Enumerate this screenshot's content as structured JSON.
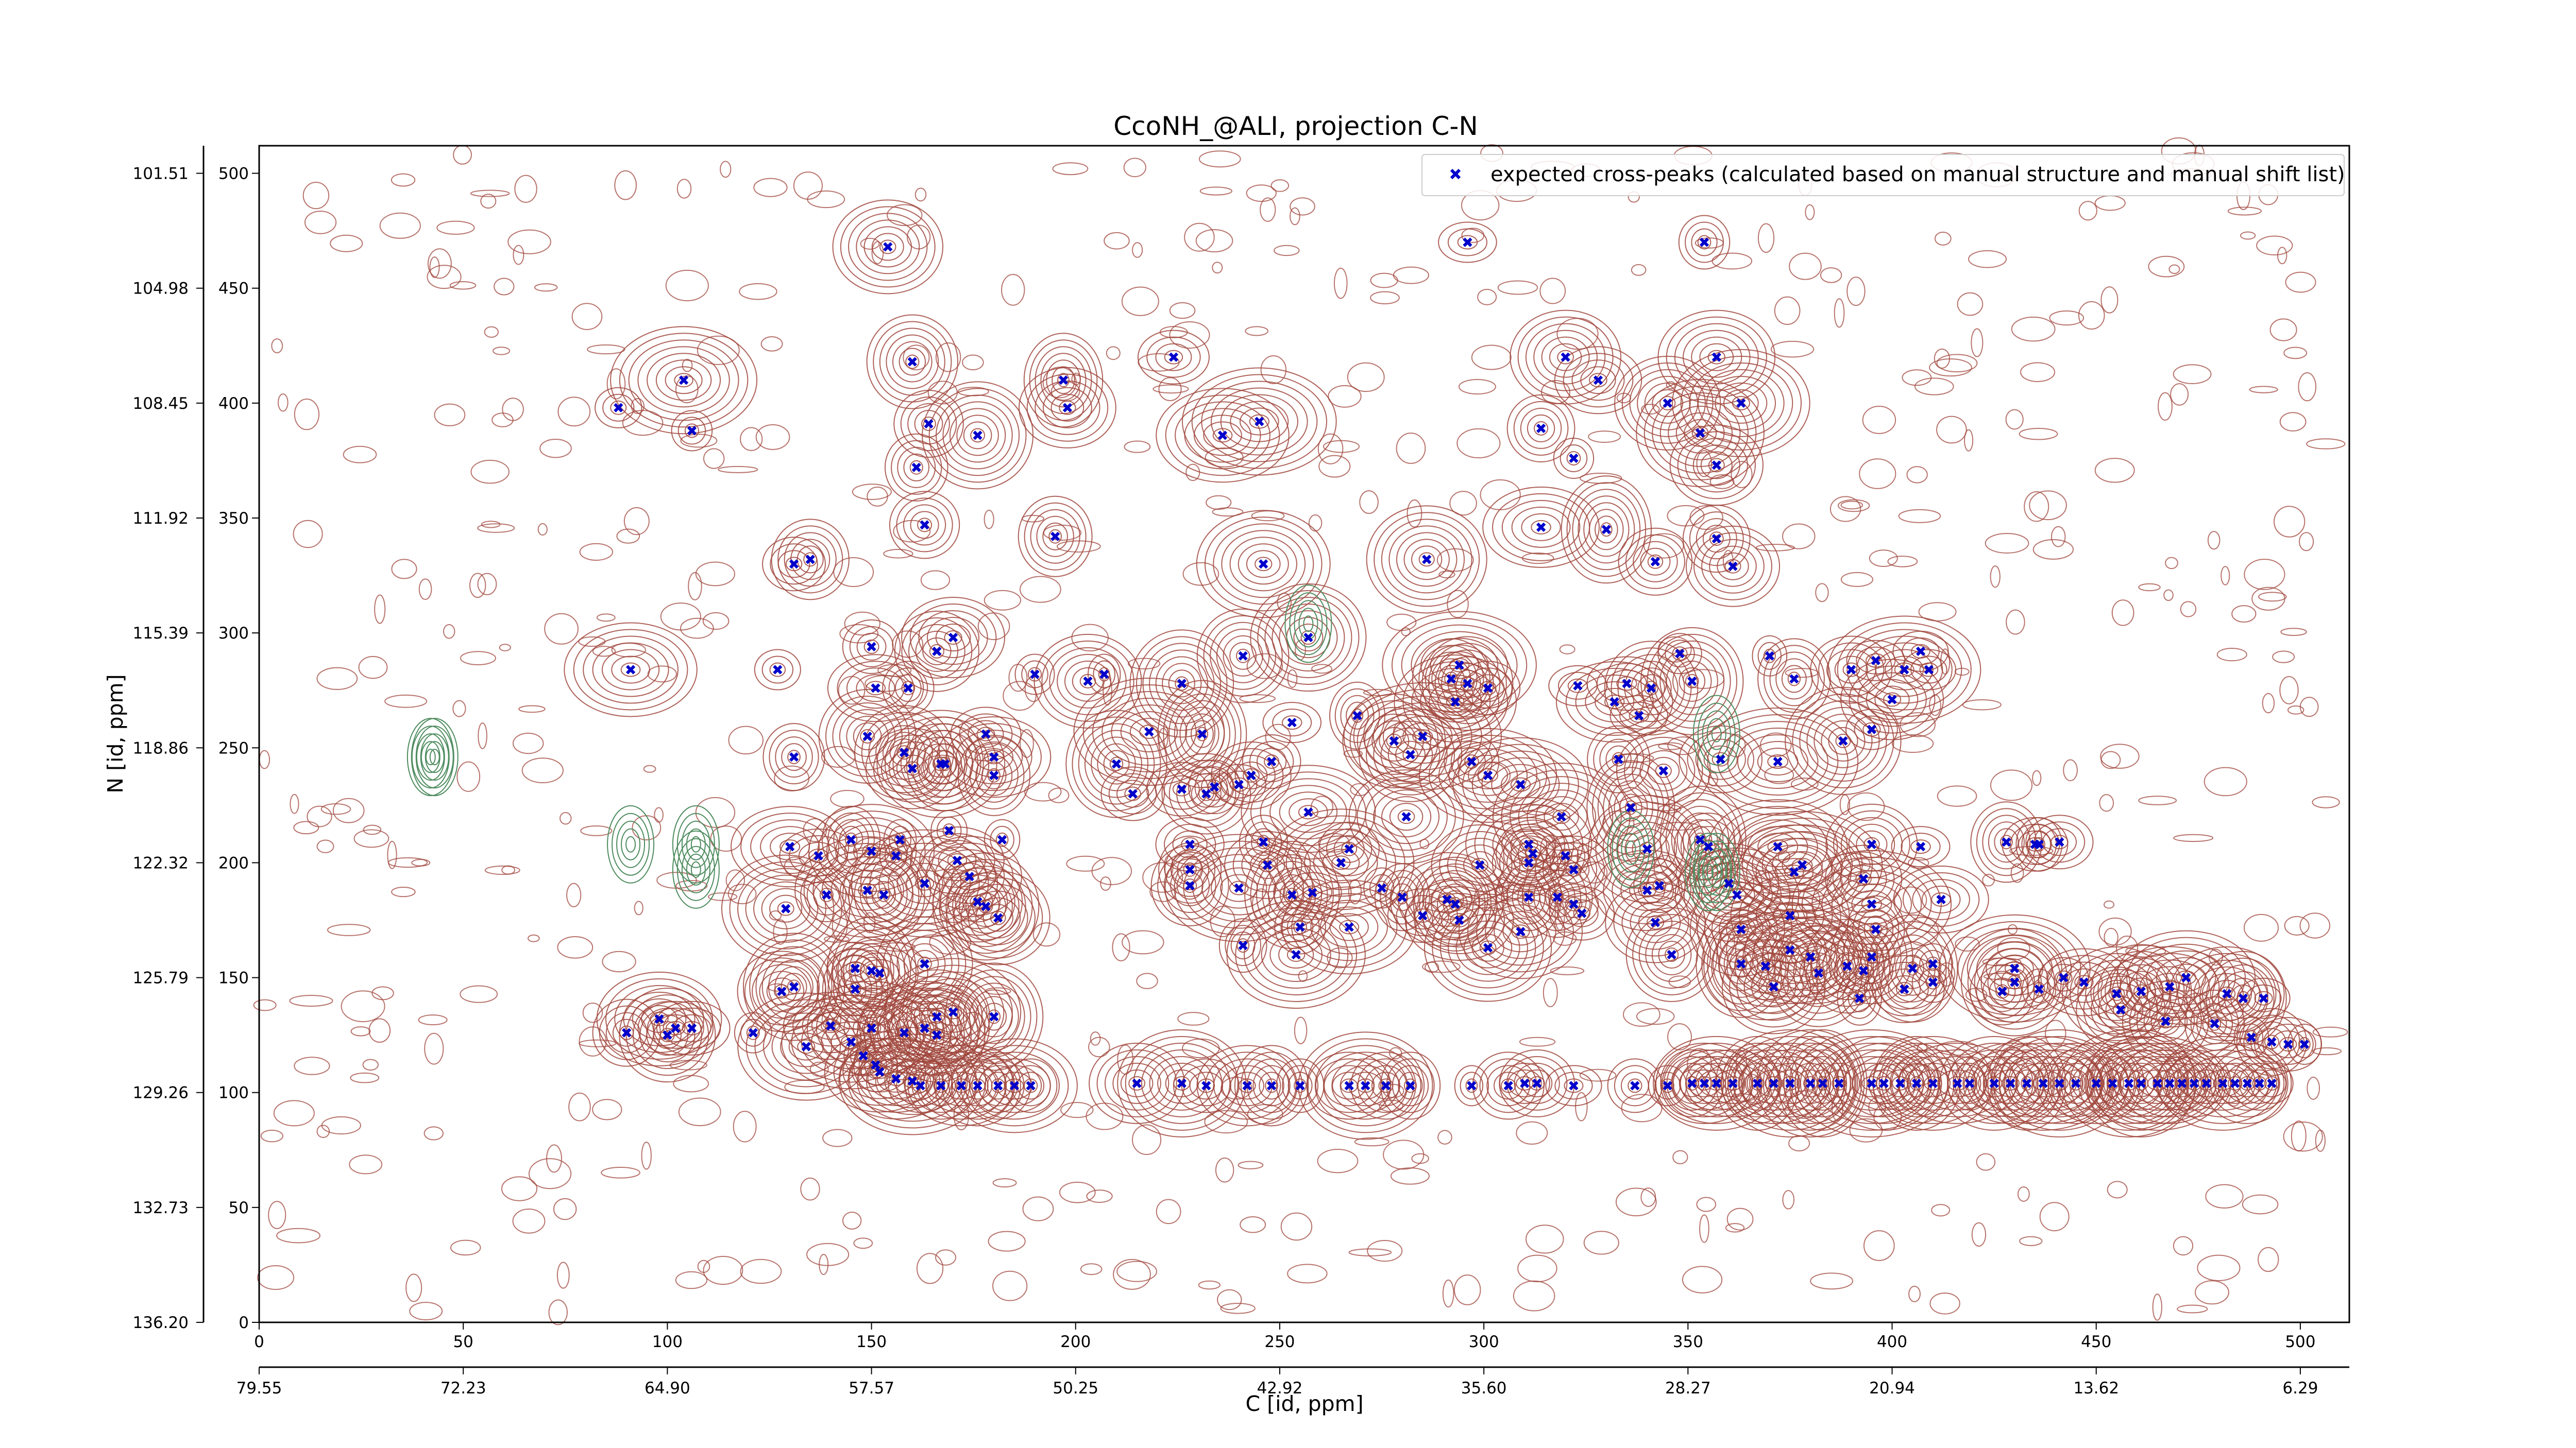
{
  "chart_data": {
    "type": "scatter",
    "title": "CcoNH_@ALI, projection C-N",
    "xlabel": "C [id, ppm]",
    "ylabel": "N [id, ppm]",
    "xlim": [
      0,
      512
    ],
    "ylim": [
      0,
      512
    ],
    "grid": false,
    "legend_position": "top-right",
    "x_index_ticks": [
      "0",
      "50",
      "100",
      "150",
      "200",
      "250",
      "300",
      "350",
      "400",
      "450",
      "500"
    ],
    "x_ppm_ticks": [
      "79.55",
      "72.23",
      "64.90",
      "57.57",
      "50.25",
      "42.92",
      "35.60",
      "28.27",
      "20.94",
      "13.62",
      "6.29"
    ],
    "y_index_ticks": [
      "0",
      "50",
      "100",
      "150",
      "200",
      "250",
      "300",
      "350",
      "400",
      "450",
      "500"
    ],
    "y_ppm_ticks": [
      "136.20",
      "132.73",
      "129.26",
      "125.79",
      "122.32",
      "118.86",
      "115.39",
      "111.92",
      "108.45",
      "104.98",
      "101.51"
    ],
    "contour_colors": {
      "positive": "#a0463c",
      "negative": "#4e8c5f"
    },
    "series": [
      {
        "name": "expected cross-peaks (calculated based on manual structure and manual shift list)",
        "color": "#0000cc",
        "marker": "x",
        "points": [
          [
            296,
            470
          ],
          [
            354,
            470
          ],
          [
            154,
            468
          ],
          [
            224,
            420
          ],
          [
            320,
            420
          ],
          [
            357,
            420
          ],
          [
            160,
            418
          ],
          [
            328,
            410
          ],
          [
            197,
            410
          ],
          [
            345,
            400
          ],
          [
            104,
            410
          ],
          [
            88,
            398
          ],
          [
            363,
            400
          ],
          [
            198,
            398
          ],
          [
            245,
            392
          ],
          [
            164,
            391
          ],
          [
            176,
            386
          ],
          [
            106,
            388
          ],
          [
            314,
            389
          ],
          [
            353,
            387
          ],
          [
            236,
            386
          ],
          [
            322,
            376
          ],
          [
            357,
            373
          ],
          [
            161,
            372
          ],
          [
            330,
            345
          ],
          [
            163,
            347
          ],
          [
            314,
            346
          ],
          [
            195,
            342
          ],
          [
            357,
            341
          ],
          [
            342,
            331
          ],
          [
            131,
            330
          ],
          [
            135,
            332
          ],
          [
            286,
            332
          ],
          [
            246,
            330
          ],
          [
            361,
            329
          ],
          [
            170,
            298
          ],
          [
            257,
            298
          ],
          [
            241,
            290
          ],
          [
            166,
            292
          ],
          [
            150,
            294
          ],
          [
            91,
            284
          ],
          [
            407,
            292
          ],
          [
            348,
            291
          ],
          [
            370,
            290
          ],
          [
            351,
            279
          ],
          [
            376,
            280
          ],
          [
            390,
            284
          ],
          [
            396,
            288
          ],
          [
            403,
            284
          ],
          [
            294,
            286
          ],
          [
            341,
            276
          ],
          [
            190,
            282
          ],
          [
            207,
            282
          ],
          [
            292,
            280
          ],
          [
            203,
            279
          ],
          [
            296,
            278
          ],
          [
            226,
            278
          ],
          [
            151,
            276
          ],
          [
            127,
            284
          ],
          [
            323,
            277
          ],
          [
            332,
            270
          ],
          [
            338,
            264
          ],
          [
            335,
            278
          ],
          [
            400,
            271
          ],
          [
            159,
            276
          ],
          [
            301,
            276
          ],
          [
            409,
            284
          ],
          [
            293,
            270
          ],
          [
            269,
            264
          ],
          [
            253,
            261
          ],
          [
            395,
            258
          ],
          [
            231,
            256
          ],
          [
            218,
            257
          ],
          [
            285,
            255
          ],
          [
            278,
            253
          ],
          [
            178,
            256
          ],
          [
            388,
            253
          ],
          [
            248,
            244
          ],
          [
            167,
            243
          ],
          [
            358,
            245
          ],
          [
            149,
            255
          ],
          [
            282,
            247
          ],
          [
            297,
            244
          ],
          [
            372,
            244
          ],
          [
            180,
            246
          ],
          [
            210,
            243
          ],
          [
            180,
            238
          ],
          [
            243,
            238
          ],
          [
            301,
            238
          ],
          [
            333,
            245
          ],
          [
            131,
            246
          ],
          [
            344,
            240
          ],
          [
            160,
            241
          ],
          [
            158,
            248
          ],
          [
            168,
            243
          ],
          [
            214,
            230
          ],
          [
            226,
            232
          ],
          [
            234,
            233
          ],
          [
            232,
            230
          ],
          [
            240,
            234
          ],
          [
            309,
            234
          ],
          [
            319,
            220
          ],
          [
            336,
            224
          ],
          [
            281,
            220
          ],
          [
            257,
            222
          ],
          [
            169,
            214
          ],
          [
            182,
            210
          ],
          [
            156,
            203
          ],
          [
            130,
            207
          ],
          [
            246,
            209
          ],
          [
            228,
            208
          ],
          [
            267,
            206
          ],
          [
            340,
            206
          ],
          [
            311,
            208
          ],
          [
            312,
            204
          ],
          [
            320,
            203
          ],
          [
            372,
            207
          ],
          [
            407,
            207
          ],
          [
            428,
            209
          ],
          [
            435,
            208
          ],
          [
            436,
            208
          ],
          [
            441,
            209
          ],
          [
            395,
            208
          ],
          [
            353,
            210
          ],
          [
            355,
            207
          ],
          [
            157,
            210
          ],
          [
            145,
            210
          ],
          [
            137,
            203
          ],
          [
            150,
            205
          ],
          [
            171,
            201
          ],
          [
            265,
            200
          ],
          [
            299,
            199
          ],
          [
            311,
            200
          ],
          [
            322,
            197
          ],
          [
            340,
            188
          ],
          [
            360,
            191
          ],
          [
            376,
            196
          ],
          [
            378,
            199
          ],
          [
            393,
            193
          ],
          [
            395,
            182
          ],
          [
            396,
            171
          ],
          [
            412,
            184
          ],
          [
            362,
            186
          ],
          [
            149,
            188
          ],
          [
            139,
            186
          ],
          [
            153,
            186
          ],
          [
            163,
            191
          ],
          [
            174,
            194
          ],
          [
            176,
            183
          ],
          [
            129,
            180
          ],
          [
            178,
            181
          ],
          [
            181,
            176
          ],
          [
            228,
            197
          ],
          [
            228,
            190
          ],
          [
            240,
            189
          ],
          [
            247,
            199
          ],
          [
            253,
            186
          ],
          [
            258,
            187
          ],
          [
            275,
            189
          ],
          [
            280,
            185
          ],
          [
            267,
            172
          ],
          [
            255,
            172
          ],
          [
            254,
            160
          ],
          [
            241,
            164
          ],
          [
            311,
            185
          ],
          [
            291,
            184
          ],
          [
            293,
            182
          ],
          [
            285,
            177
          ],
          [
            301,
            163
          ],
          [
            294,
            175
          ],
          [
            309,
            170
          ],
          [
            318,
            185
          ],
          [
            322,
            182
          ],
          [
            324,
            178
          ],
          [
            343,
            190
          ],
          [
            342,
            174
          ],
          [
            346,
            160
          ],
          [
            363,
            156
          ],
          [
            363,
            171
          ],
          [
            375,
            177
          ],
          [
            395,
            159
          ],
          [
            369,
            155
          ],
          [
            371,
            146
          ],
          [
            375,
            162
          ],
          [
            380,
            159
          ],
          [
            382,
            152
          ],
          [
            389,
            155
          ],
          [
            393,
            153
          ],
          [
            405,
            154
          ],
          [
            410,
            156
          ],
          [
            430,
            154
          ],
          [
            430,
            148
          ],
          [
            392,
            141
          ],
          [
            403,
            145
          ],
          [
            410,
            148
          ],
          [
            427,
            144
          ],
          [
            436,
            145
          ],
          [
            442,
            150
          ],
          [
            447,
            148
          ],
          [
            455,
            143
          ],
          [
            461,
            144
          ],
          [
            468,
            146
          ],
          [
            472,
            150
          ],
          [
            482,
            143
          ],
          [
            486,
            141
          ],
          [
            491,
            141
          ],
          [
            456,
            136
          ],
          [
            467,
            131
          ],
          [
            479,
            130
          ],
          [
            488,
            124
          ],
          [
            493,
            122
          ],
          [
            497,
            121
          ],
          [
            501,
            121
          ],
          [
            146,
            154
          ],
          [
            150,
            153
          ],
          [
            163,
            156
          ],
          [
            152,
            152
          ],
          [
            146,
            145
          ],
          [
            131,
            146
          ],
          [
            128,
            144
          ],
          [
            121,
            126
          ],
          [
            98,
            132
          ],
          [
            102,
            128
          ],
          [
            100,
            125
          ],
          [
            90,
            126
          ],
          [
            106,
            128
          ],
          [
            134,
            120
          ],
          [
            140,
            129
          ],
          [
            150,
            128
          ],
          [
            145,
            122
          ],
          [
            158,
            126
          ],
          [
            166,
            125
          ],
          [
            180,
            133
          ],
          [
            170,
            135
          ],
          [
            166,
            133
          ],
          [
            163,
            128
          ],
          [
            148,
            116
          ],
          [
            151,
            112
          ],
          [
            152,
            109
          ],
          [
            156,
            106
          ],
          [
            160,
            105
          ],
          [
            162,
            103
          ],
          [
            167,
            103
          ],
          [
            172,
            103
          ],
          [
            176,
            103
          ],
          [
            181,
            103
          ],
          [
            185,
            103
          ],
          [
            189,
            103
          ],
          [
            215,
            104
          ],
          [
            226,
            104
          ],
          [
            232,
            103
          ],
          [
            242,
            103
          ],
          [
            248,
            103
          ],
          [
            255,
            103
          ],
          [
            267,
            103
          ],
          [
            271,
            103
          ],
          [
            276,
            103
          ],
          [
            282,
            103
          ],
          [
            297,
            103
          ],
          [
            306,
            103
          ],
          [
            310,
            104
          ],
          [
            313,
            104
          ],
          [
            322,
            103
          ],
          [
            337,
            103
          ],
          [
            345,
            103
          ],
          [
            351,
            104
          ],
          [
            354,
            104
          ],
          [
            357,
            104
          ],
          [
            361,
            104
          ],
          [
            367,
            104
          ],
          [
            371,
            104
          ],
          [
            375,
            104
          ],
          [
            380,
            104
          ],
          [
            383,
            104
          ],
          [
            387,
            104
          ],
          [
            395,
            104
          ],
          [
            398,
            104
          ],
          [
            402,
            104
          ],
          [
            406,
            104
          ],
          [
            410,
            104
          ],
          [
            416,
            104
          ],
          [
            419,
            104
          ],
          [
            425,
            104
          ],
          [
            429,
            104
          ],
          [
            433,
            104
          ],
          [
            437,
            104
          ],
          [
            441,
            104
          ],
          [
            445,
            104
          ],
          [
            450,
            104
          ],
          [
            454,
            104
          ],
          [
            458,
            104
          ],
          [
            461,
            104
          ],
          [
            465,
            104
          ],
          [
            468,
            104
          ],
          [
            471,
            104
          ],
          [
            474,
            104
          ],
          [
            477,
            104
          ],
          [
            481,
            104
          ],
          [
            484,
            104
          ],
          [
            487,
            104
          ],
          [
            490,
            104
          ],
          [
            493,
            104
          ]
        ]
      }
    ]
  }
}
